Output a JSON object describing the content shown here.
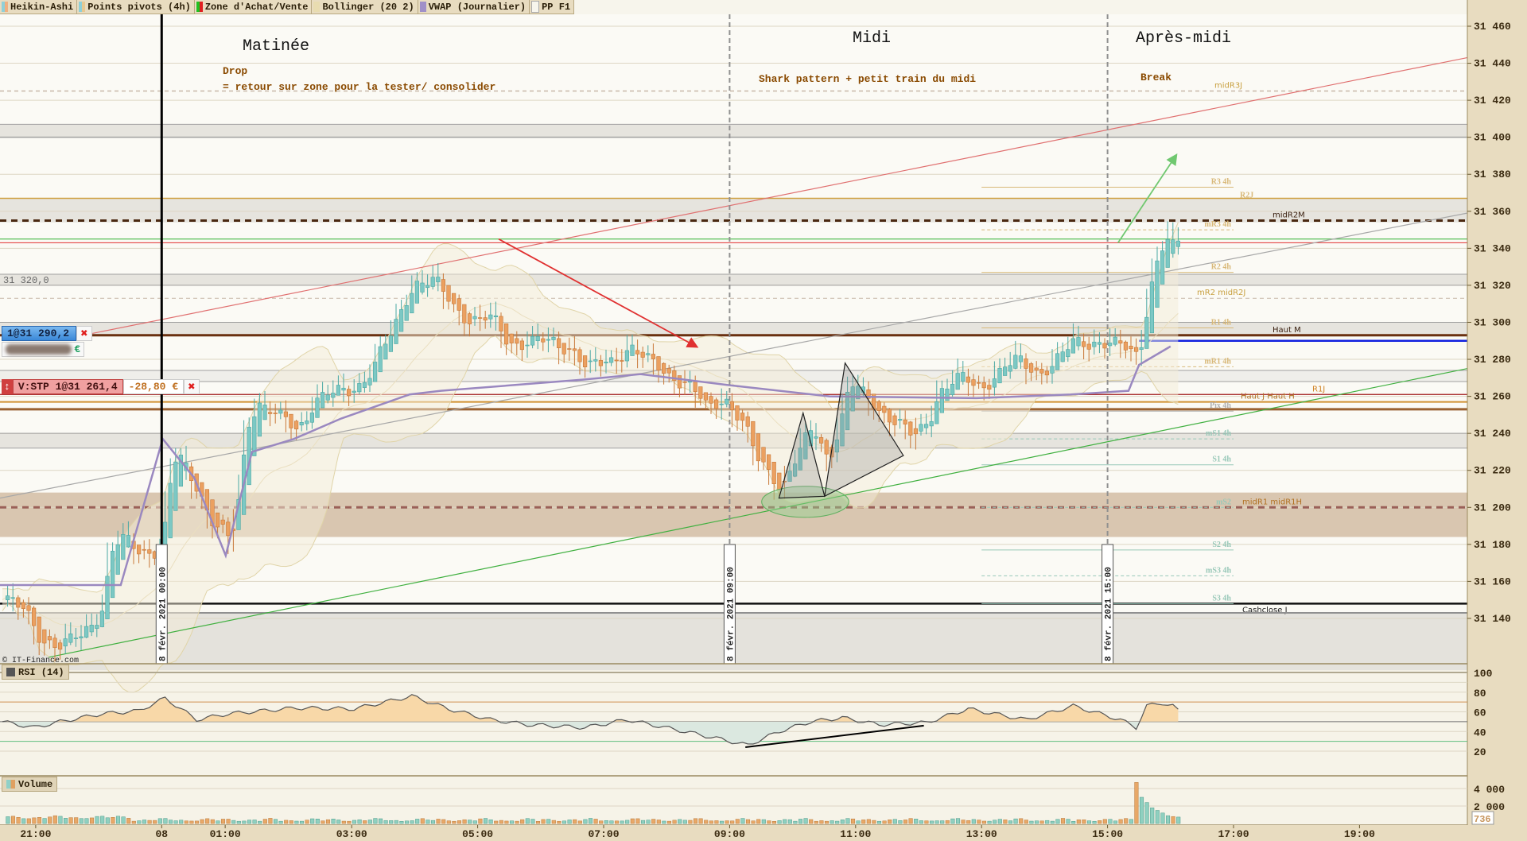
{
  "legend": [
    {
      "label": "Heikin-Ashi",
      "colors": [
        "#8fd0d8",
        "#f0b080"
      ]
    },
    {
      "label": "Points pivots (4h)",
      "colors": [
        "#8fd0d8",
        "#e8c890"
      ]
    },
    {
      "label": "Zone d'Achat/Vente",
      "colors": [
        "#20c020",
        "#e02020"
      ]
    },
    {
      "label": "Bollinger (20 2)",
      "colors": [
        "#e8dcb0",
        "#e8dcb0"
      ]
    },
    {
      "label": "VWAP (Journalier)",
      "colors": [
        "#a090c8",
        "#a090c8"
      ]
    },
    {
      "label": "PP F1",
      "colors": [
        "#f7f5ec",
        "#f7f5ec"
      ]
    }
  ],
  "annotations": {
    "matinee": "Matinée",
    "drop": "Drop",
    "drop_detail": "= retour sur zone pour la tester/ consolider",
    "midi": "Midi",
    "midi_detail": "Shark pattern + petit train du midi",
    "apres_midi": "Après-midi",
    "break": "Break"
  },
  "orders": {
    "entry": "1@31 290,2",
    "entry_pnl_currency": "€",
    "stop": "V:STP 1@31 261,4",
    "stop_pnl": "-28,80 €"
  },
  "crosshair_price": "31 320,0",
  "copyright": "© IT-Finance.com",
  "panels": {
    "rsi": "RSI (14)",
    "volume": "Volume"
  },
  "chart_data": {
    "type": "candlestick",
    "style": "heikin-ashi",
    "bar_minutes": 5,
    "price_ticks": [
      "31 460",
      "31 440",
      "31 420",
      "31 400",
      "31 380",
      "31 360",
      "31 340",
      "31 320",
      "31 300",
      "31 280",
      "31 260",
      "31 240",
      "31 220",
      "31 200",
      "31 180",
      "31 160",
      "31 140"
    ],
    "price_range": [
      31110,
      31470
    ],
    "time_ticks": [
      {
        "label": "21:00",
        "bar": 6.8
      },
      {
        "label": "08",
        "bar": 30.8
      },
      {
        "label": "01:00",
        "bar": 42.9
      },
      {
        "label": "03:00",
        "bar": 67
      },
      {
        "label": "05:00",
        "bar": 91
      },
      {
        "label": "07:00",
        "bar": 115
      },
      {
        "label": "09:00",
        "bar": 139
      },
      {
        "label": "11:00",
        "bar": 163
      },
      {
        "label": "13:00",
        "bar": 187
      },
      {
        "label": "15:00",
        "bar": 211
      },
      {
        "label": "17:00",
        "bar": 235
      },
      {
        "label": "19:00",
        "bar": 259
      }
    ],
    "date_markers": [
      {
        "label": "8 févr. 2021 00:00",
        "bar": 30.8,
        "style": "solid"
      },
      {
        "label": "8 févr. 2021 09:00",
        "bar": 139,
        "style": "dashed"
      },
      {
        "label": "8 févr. 2021 15:00",
        "bar": 211,
        "style": "dashed"
      }
    ],
    "close_keypoints": [
      [
        0,
        31150
      ],
      [
        4,
        31143
      ],
      [
        7,
        31130
      ],
      [
        11,
        31124
      ],
      [
        15,
        31132
      ],
      [
        19,
        31148
      ],
      [
        20,
        31174
      ],
      [
        22,
        31182
      ],
      [
        26,
        31177
      ],
      [
        30,
        31177
      ],
      [
        32,
        31222
      ],
      [
        33,
        31227
      ],
      [
        37,
        31211
      ],
      [
        39,
        31195
      ],
      [
        43,
        31180
      ],
      [
        45,
        31211
      ],
      [
        46,
        31243
      ],
      [
        48,
        31258
      ],
      [
        52,
        31248
      ],
      [
        56,
        31243
      ],
      [
        59,
        31258
      ],
      [
        63,
        31261
      ],
      [
        67,
        31266
      ],
      [
        70,
        31274
      ],
      [
        74,
        31295
      ],
      [
        76,
        31311
      ],
      [
        78,
        31322
      ],
      [
        82,
        31321
      ],
      [
        85,
        31311
      ],
      [
        89,
        31301
      ],
      [
        93,
        31301
      ],
      [
        96,
        31290
      ],
      [
        100,
        31289
      ],
      [
        104,
        31289
      ],
      [
        108,
        31287
      ],
      [
        111,
        31274
      ],
      [
        115,
        31279
      ],
      [
        119,
        31287
      ],
      [
        122,
        31279
      ],
      [
        126,
        31274
      ],
      [
        130,
        31266
      ],
      [
        134,
        31253
      ],
      [
        137,
        31261
      ],
      [
        141,
        31243
      ],
      [
        143,
        31227
      ],
      [
        147,
        31216
      ],
      [
        148,
        31211
      ],
      [
        151,
        31227
      ],
      [
        154,
        31243
      ],
      [
        157,
        31227
      ],
      [
        160,
        31253
      ],
      [
        161,
        31266
      ],
      [
        165,
        31258
      ],
      [
        169,
        31248
      ],
      [
        173,
        31237
      ],
      [
        176,
        31248
      ],
      [
        178,
        31263
      ],
      [
        182,
        31269
      ],
      [
        186,
        31266
      ],
      [
        189,
        31272
      ],
      [
        193,
        31279
      ],
      [
        197,
        31274
      ],
      [
        200,
        31277
      ],
      [
        204,
        31290
      ],
      [
        208,
        31290
      ],
      [
        211,
        31287
      ],
      [
        215,
        31285
      ],
      [
        216,
        31282
      ],
      [
        218,
        31316
      ],
      [
        220,
        31337
      ],
      [
        222,
        31345
      ],
      [
        223,
        31334
      ],
      [
        224,
        31350
      ]
    ],
    "vwap_keypoints": [
      [
        0,
        31158
      ],
      [
        23,
        31158
      ],
      [
        31,
        31237
      ],
      [
        37,
        31216
      ],
      [
        43,
        31174
      ],
      [
        48,
        31230
      ],
      [
        56,
        31237
      ],
      [
        65,
        31248
      ],
      [
        78,
        31261
      ],
      [
        84,
        31263
      ],
      [
        111,
        31269
      ],
      [
        122,
        31272
      ],
      [
        139,
        31266
      ],
      [
        158,
        31260
      ],
      [
        186,
        31259
      ],
      [
        204,
        31261
      ],
      [
        215,
        31263
      ],
      [
        217,
        31277
      ],
      [
        223,
        31287
      ]
    ],
    "levels": [
      {
        "label": "midR3J",
        "price": 31425,
        "color": "#c8b8a8",
        "width": 1.5,
        "dash": "5,4",
        "label_color": "#c8a040"
      },
      {
        "label": "",
        "price": 31407,
        "color": "#a0a0a0",
        "width": 1
      },
      {
        "label": "",
        "price": 31400,
        "color": "#a0a0a0",
        "width": 1.5
      },
      {
        "label": "",
        "price": 31367,
        "color": "#d0a040",
        "width": 1.5
      },
      {
        "label": "midR2M",
        "price": 31355,
        "color": "#4a2810",
        "width": 3,
        "dash": "8,6",
        "label_color": "#3a2010"
      },
      {
        "label": "",
        "price": 31345,
        "color": "#30b030",
        "width": 1
      },
      {
        "label": "",
        "price": 31343,
        "color": "#e03030",
        "width": 1
      },
      {
        "label": "",
        "price": 31326,
        "color": "#a0a0a0",
        "width": 1
      },
      {
        "label": "",
        "price": 31320,
        "color": "#a0a0a0",
        "width": 1
      },
      {
        "label": "mR2 midR2J",
        "price": 31313,
        "color": "#c8b8a8",
        "width": 1,
        "dash": "5,4",
        "label_color": "#c8a040"
      },
      {
        "label": "",
        "price": 31300,
        "color": "#a0a0a0",
        "width": 1
      },
      {
        "label": "Haut M",
        "price": 31293,
        "color": "#6a3010",
        "width": 3,
        "label_color": "#3a2010"
      },
      {
        "label": "",
        "price": 31274,
        "color": "#a0a0a0",
        "width": 1
      },
      {
        "label": "",
        "price": 31268,
        "color": "#a0a0a0",
        "width": 1
      },
      {
        "label": "R1J",
        "price": 31261,
        "color": "#a01818",
        "width": 1.2,
        "label_color": "#d08020"
      },
      {
        "label": "Haut J Haut H",
        "price": 31257,
        "color": "#d09030",
        "width": 2,
        "label_color": "#b07020"
      },
      {
        "label": "",
        "price": 31253,
        "color": "#9a6030",
        "width": 3
      },
      {
        "label": "",
        "price": 31240,
        "color": "#a0a0a0",
        "width": 1
      },
      {
        "label": "",
        "price": 31232,
        "color": "#a0a0a0",
        "width": 1
      },
      {
        "label": "midR1 midR1H",
        "price": 31200,
        "color": "#9a6058",
        "width": 3,
        "dash": "8,6",
        "label_color": "#b07020"
      },
      {
        "label": "Cashclose J",
        "price": 31148,
        "color": "#101010",
        "width": 2.5,
        "label_color": "#202020"
      },
      {
        "label": "",
        "price": 31143,
        "color": "#909090",
        "width": 2
      }
    ],
    "partial_levels": [
      {
        "label": "",
        "price": 31290,
        "from_bar": 217,
        "color": "#1020e0",
        "width": 2.5
      }
    ],
    "zones": [
      {
        "from": 31400,
        "to": 31407,
        "color": "#e6e4de"
      },
      {
        "from": 31354,
        "to": 31367,
        "color": "#e6e4de"
      },
      {
        "from": 31320,
        "to": 31326,
        "color": "#e6e4de"
      },
      {
        "from": 31293,
        "to": 31300,
        "color": "#e6e4de"
      },
      {
        "from": 31268,
        "to": 31274,
        "color": "#efeeea"
      },
      {
        "from": 31232,
        "to": 31240,
        "color": "#e6e4de"
      },
      {
        "from": 31184,
        "to": 31208,
        "color": "#d9c6b0"
      },
      {
        "from": 31112,
        "to": 31143,
        "color": "#e4e2dc"
      }
    ],
    "pivots_4h": {
      "from_bar": 187,
      "to_bar": 235,
      "items": [
        {
          "label": "R3 4h",
          "price": 31373,
          "dash": false,
          "color": "#d8b878"
        },
        {
          "label": "R2J",
          "price": 31370,
          "dash": false,
          "color": "#d8b878"
        },
        {
          "label": "mR3 4h",
          "price": 31350,
          "dash": true,
          "color": "#d8b878"
        },
        {
          "label": "R2 4h",
          "price": 31327,
          "dash": false,
          "color": "#d8b878"
        },
        {
          "label": "R1 4h",
          "price": 31297,
          "dash": false,
          "color": "#d8b878"
        },
        {
          "label": "mR1 4h",
          "price": 31276,
          "dash": true,
          "color": "#d8b878"
        },
        {
          "label": "Pix 4h",
          "price": 31252,
          "dash": false,
          "color": "#b0b0b0"
        },
        {
          "label": "mS1 4h",
          "price": 31237,
          "dash": true,
          "color": "#98c8b8"
        },
        {
          "label": "S1 4h",
          "price": 31223,
          "dash": false,
          "color": "#98c8b8"
        },
        {
          "label": "mS2",
          "price": 31200,
          "dash": true,
          "color": "#98c8b8"
        },
        {
          "label": "S2 4h",
          "price": 31177,
          "dash": false,
          "color": "#98c8b8"
        },
        {
          "label": "mS3 4h",
          "price": 31163,
          "dash": true,
          "color": "#98c8b8"
        },
        {
          "label": "S3 4h",
          "price": 31148,
          "dash": false,
          "color": "#98c8b8"
        }
      ]
    },
    "trendlines": [
      {
        "name": "red-resistance-trendline",
        "points": [
          [
            17.6,
            31294
          ],
          [
            279.5,
            31443
          ]
        ],
        "color": "#e07070"
      },
      {
        "name": "gray-trendline",
        "points": [
          [
            0,
            31205
          ],
          [
            279.5,
            31359
          ]
        ],
        "color": "#a8a8a8"
      },
      {
        "name": "green-support-trendline",
        "points": [
          [
            9.3,
            31119
          ],
          [
            279.5,
            31275
          ]
        ],
        "color": "#40b040"
      }
    ],
    "arrows": [
      {
        "name": "red-drop-arrow",
        "from": [
          95,
          31345
        ],
        "to": [
          132.6,
          31287
        ],
        "color": "#e03030"
      },
      {
        "name": "green-break-arrow",
        "from": [
          213,
          31343
        ],
        "to": [
          224,
          31390
        ],
        "color": "#70c870"
      }
    ],
    "shark_pattern": [
      [
        [
          148.4,
          31205
        ],
        [
          153,
          31251
        ],
        [
          157.1,
          31206
        ]
      ],
      [
        [
          157.1,
          31206
        ],
        [
          161,
          31278
        ],
        [
          172.1,
          31228
        ]
      ]
    ],
    "shark_ellipse": {
      "center": [
        153.4,
        31203
      ],
      "rx_bars": 8.3,
      "ry_price": 8.4
    },
    "rsi": {
      "period": 14,
      "ticks": [
        100,
        80,
        60,
        40,
        20
      ],
      "overbought": 70,
      "mid": 50,
      "oversold": 30,
      "keypoints": [
        [
          0,
          50
        ],
        [
          6,
          44
        ],
        [
          11,
          50
        ],
        [
          19,
          58
        ],
        [
          26,
          61
        ],
        [
          31,
          74
        ],
        [
          37,
          52
        ],
        [
          43,
          58
        ],
        [
          56,
          64
        ],
        [
          67,
          63
        ],
        [
          78,
          76
        ],
        [
          85,
          63
        ],
        [
          93,
          52
        ],
        [
          100,
          47
        ],
        [
          111,
          44
        ],
        [
          119,
          52
        ],
        [
          130,
          40
        ],
        [
          137,
          32
        ],
        [
          142,
          26
        ],
        [
          148,
          40
        ],
        [
          154,
          50
        ],
        [
          160,
          54
        ],
        [
          167,
          47
        ],
        [
          176,
          49
        ],
        [
          184,
          63
        ],
        [
          195,
          52
        ],
        [
          204,
          66
        ],
        [
          213,
          52
        ],
        [
          216,
          44
        ],
        [
          218,
          66
        ],
        [
          221,
          69
        ],
        [
          223,
          66
        ],
        [
          224,
          61
        ]
      ],
      "divergence_line": [
        [
          142,
          24
        ],
        [
          176,
          46
        ]
      ]
    },
    "volume": {
      "ticks": [
        "4 000",
        "2 000"
      ],
      "tick_values": [
        4000,
        2000
      ],
      "recent_bars": [
        [
          216,
          4700
        ],
        [
          217,
          3000
        ],
        [
          218,
          2400
        ],
        [
          219,
          1800
        ],
        [
          220,
          1500
        ],
        [
          221,
          1200
        ],
        [
          222,
          900
        ],
        [
          223,
          800
        ],
        [
          224,
          736
        ]
      ],
      "last_value": "736"
    }
  }
}
